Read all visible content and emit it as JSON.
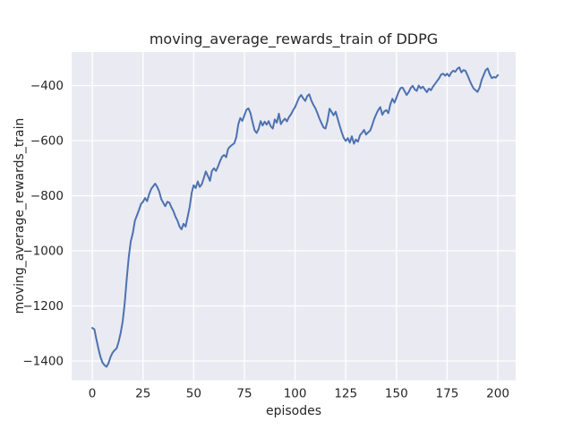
{
  "figure": {
    "background": "#ffffff"
  },
  "chart_data": {
    "type": "line",
    "title": "moving_average_rewards_train of DDPG",
    "xlabel": "episodes",
    "ylabel": "moving_average_rewards_train",
    "x_ticks": [
      0,
      25,
      50,
      75,
      100,
      125,
      150,
      175,
      200
    ],
    "x_tick_labels": [
      "0",
      "25",
      "50",
      "75",
      "100",
      "125",
      "150",
      "175",
      "200"
    ],
    "y_ticks": [
      -400,
      -600,
      -800,
      -1000,
      -1200,
      -1400
    ],
    "y_tick_labels": [
      "−400",
      "−600",
      "−800",
      "−1000",
      "−1200",
      "−1400"
    ],
    "xlim": [
      -10.2,
      208.8
    ],
    "ylim": [
      -1470,
      -278
    ],
    "grid": true,
    "legend": false,
    "styles": {
      "axes_background": "#EAEAF2",
      "grid_color": "#FFFFFF",
      "line_color": "#4C72B0",
      "text_color": "#262626"
    },
    "series": [
      {
        "name": "DDPG moving average rewards (train)",
        "x_start": 0,
        "x_step": 1,
        "values": [
          -1280,
          -1285,
          -1320,
          -1355,
          -1385,
          -1405,
          -1415,
          -1421,
          -1408,
          -1385,
          -1370,
          -1361,
          -1354,
          -1330,
          -1298,
          -1255,
          -1190,
          -1100,
          -1020,
          -965,
          -935,
          -890,
          -872,
          -852,
          -830,
          -822,
          -808,
          -820,
          -795,
          -776,
          -766,
          -756,
          -768,
          -784,
          -812,
          -826,
          -838,
          -822,
          -825,
          -842,
          -856,
          -876,
          -890,
          -912,
          -922,
          -902,
          -912,
          -878,
          -842,
          -790,
          -762,
          -772,
          -748,
          -768,
          -758,
          -735,
          -712,
          -728,
          -746,
          -710,
          -700,
          -710,
          -694,
          -674,
          -658,
          -652,
          -660,
          -630,
          -621,
          -615,
          -610,
          -588,
          -540,
          -518,
          -528,
          -508,
          -488,
          -483,
          -500,
          -532,
          -562,
          -572,
          -558,
          -529,
          -545,
          -531,
          -542,
          -529,
          -548,
          -556,
          -523,
          -535,
          -502,
          -540,
          -528,
          -520,
          -530,
          -514,
          -504,
          -490,
          -478,
          -460,
          -444,
          -434,
          -446,
          -456,
          -438,
          -432,
          -454,
          -470,
          -482,
          -500,
          -520,
          -536,
          -552,
          -556,
          -528,
          -484,
          -496,
          -508,
          -495,
          -520,
          -546,
          -570,
          -590,
          -601,
          -591,
          -607,
          -584,
          -611,
          -596,
          -604,
          -580,
          -572,
          -561,
          -578,
          -570,
          -564,
          -545,
          -522,
          -504,
          -489,
          -478,
          -506,
          -494,
          -489,
          -500,
          -468,
          -448,
          -462,
          -444,
          -424,
          -409,
          -407,
          -420,
          -434,
          -424,
          -409,
          -401,
          -414,
          -419,
          -400,
          -410,
          -404,
          -414,
          -424,
          -411,
          -417,
          -404,
          -394,
          -384,
          -374,
          -360,
          -357,
          -364,
          -357,
          -366,
          -353,
          -346,
          -350,
          -339,
          -334,
          -352,
          -344,
          -346,
          -362,
          -380,
          -396,
          -410,
          -417,
          -423,
          -407,
          -379,
          -362,
          -344,
          -338,
          -359,
          -373,
          -369,
          -371,
          -362
        ]
      }
    ]
  }
}
